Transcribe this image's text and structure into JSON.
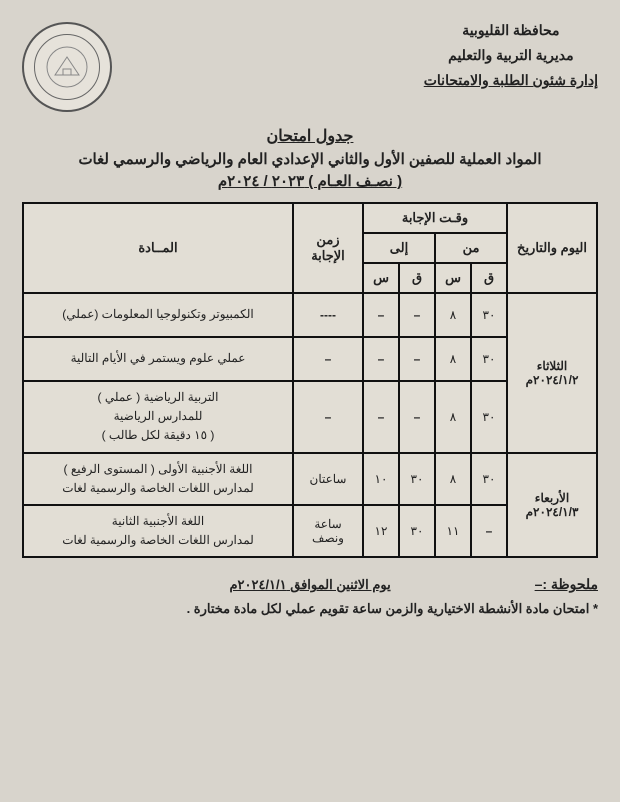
{
  "header": {
    "line1": "محافظة القليوبية",
    "line2": "مديرية التربية والتعليم",
    "line3": "إدارة شئون الطلبة والامتحانات"
  },
  "title": {
    "t1": "جدول امتحان",
    "t2": "المواد العملية للصفين الأول والثاني الإعدادي العام والرياضي والرسمي لغات",
    "t3": "( نصـف العـام ) ٢٠٢٣ / ٢٠٢٤م"
  },
  "thead": {
    "day": "اليوم والتاريخ",
    "time": "وقـت الإجابة",
    "from": "من",
    "to": "إلى",
    "q": "ق",
    "s": "س",
    "dur": "زمن الإجابة",
    "subj": "المــادة"
  },
  "rows": [
    {
      "day": "الثلاثاء\n٢٠٢٤/١/٢م",
      "cells": [
        {
          "fq": "٣٠",
          "fs": "٨",
          "tq": "–",
          "ts": "–",
          "dur": "----",
          "subj": "الكمبيوتر وتكنولوجيا المعلومات (عملي)"
        },
        {
          "fq": "٣٠",
          "fs": "٨",
          "tq": "–",
          "ts": "–",
          "dur": "–",
          "subj": "عملي علوم ويستمر في الأيام التالية"
        },
        {
          "fq": "٣٠",
          "fs": "٨",
          "tq": "–",
          "ts": "–",
          "dur": "–",
          "subj": "التربية الرياضية ( عملي )\nللمدارس الرياضية\n( ١٥ دقيقة لكل طالب )"
        }
      ]
    },
    {
      "day": "الأربعاء\n٢٠٢٤/١/٣م",
      "cells": [
        {
          "fq": "٣٠",
          "fs": "٨",
          "tq": "٣٠",
          "ts": "١٠",
          "dur": "ساعتان",
          "subj": "اللغة الأجنبية الأولى ( المستوى الرفيع )\nلمدارس اللغات الخاصة والرسمية لغات"
        },
        {
          "fq": "–",
          "fs": "١١",
          "tq": "٣٠",
          "ts": "١٢",
          "dur": "ساعة ونصف",
          "subj": "اللغة الأجنبية الثانية\nلمدارس اللغات الخاصة والرسمية لغات"
        }
      ]
    }
  ],
  "note": {
    "title": "ملحوظة :–",
    "date": "يوم الاثنين الموافق ٢٠٢٤/١/١م",
    "body": "* امتحان مادة الأنشطة الاختيارية والزمن ساعة تقويم عملي لكل مادة مختارة ."
  }
}
